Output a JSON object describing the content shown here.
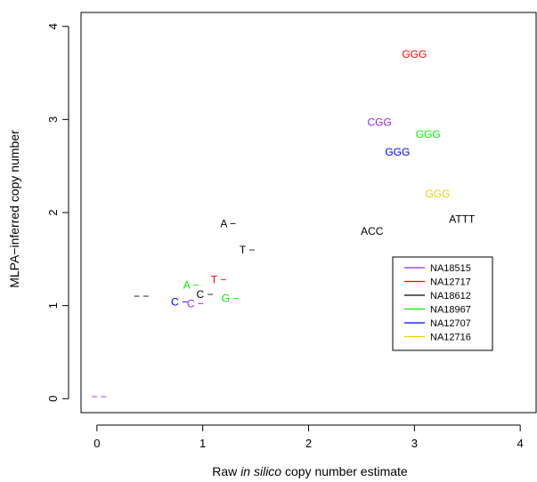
{
  "chart_data": {
    "type": "scatter",
    "xlabel_parts": [
      {
        "text": "Raw ",
        "italic": false
      },
      {
        "text": "in silico",
        "italic": true
      },
      {
        "text": " copy number estimate",
        "italic": false
      }
    ],
    "ylabel": "MLPA−inferred copy number",
    "xlim": [
      -0.15,
      4.15
    ],
    "ylim": [
      -0.15,
      4.15
    ],
    "xticks": [
      0,
      1,
      2,
      3,
      4
    ],
    "yticks": [
      0,
      1,
      2,
      3,
      4
    ],
    "grid": false,
    "legend_position": "right",
    "series": [
      {
        "name": "NA18515",
        "color": "#a020f0",
        "points": [
          {
            "x": 0.02,
            "y": 0.02,
            "label": "− −"
          },
          {
            "x": 0.93,
            "y": 1.02,
            "label": "C −"
          },
          {
            "x": 2.67,
            "y": 2.97,
            "label": "CGG"
          }
        ]
      },
      {
        "name": "NA12717",
        "color": "#ff0000",
        "points": [
          {
            "x": 1.15,
            "y": 1.28,
            "label": "T −"
          },
          {
            "x": 3.0,
            "y": 3.7,
            "label": "GGG"
          }
        ]
      },
      {
        "name": "NA18612",
        "color": "#000000",
        "points": [
          {
            "x": 0.42,
            "y": 1.1,
            "label": "− −"
          },
          {
            "x": 1.02,
            "y": 1.12,
            "label": "C −"
          },
          {
            "x": 1.24,
            "y": 1.88,
            "label": "A −"
          },
          {
            "x": 1.42,
            "y": 1.6,
            "label": "T −"
          },
          {
            "x": 2.6,
            "y": 1.8,
            "label": "ACC"
          },
          {
            "x": 3.45,
            "y": 1.93,
            "label": "ATTT"
          }
        ]
      },
      {
        "name": "NA18967",
        "color": "#00ee00",
        "points": [
          {
            "x": 0.89,
            "y": 1.22,
            "label": "A −"
          },
          {
            "x": 1.26,
            "y": 1.08,
            "label": "G −"
          },
          {
            "x": 3.13,
            "y": 2.84,
            "label": "GGG"
          }
        ]
      },
      {
        "name": "NA12707",
        "color": "#0000ff",
        "points": [
          {
            "x": 0.78,
            "y": 1.04,
            "label": "C −"
          },
          {
            "x": 2.84,
            "y": 2.65,
            "label": "GGG"
          }
        ]
      },
      {
        "name": "NA12716",
        "color": "#e6d200",
        "points": [
          {
            "x": 3.22,
            "y": 2.2,
            "label": "GGG"
          }
        ]
      }
    ]
  }
}
